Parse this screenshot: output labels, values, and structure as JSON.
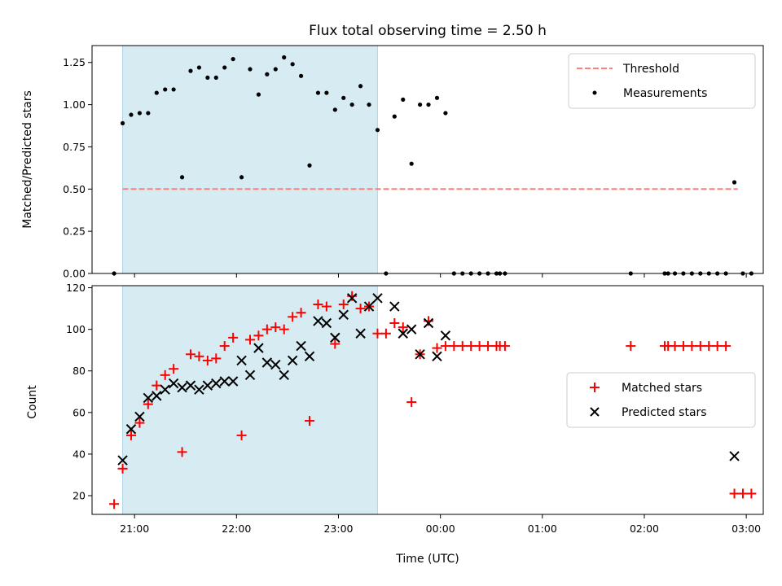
{
  "chart_data": [
    {
      "type": "scatter",
      "title": "Flux total observing time = 2.50 h",
      "xlabel": "",
      "ylabel": "Matched/Predicted stars",
      "x_unit": "time (UTC)",
      "xlim": [
        "20:35",
        "03:10"
      ],
      "ylim": [
        0,
        1.35
      ],
      "x_ticks": [
        "21:00",
        "22:00",
        "23:00",
        "00:00",
        "01:00",
        "02:00",
        "03:00"
      ],
      "x_tick_labels_shown": false,
      "y_ticks": [
        0.0,
        0.25,
        0.5,
        0.75,
        1.0,
        1.25
      ],
      "y_tick_labels": [
        "0.00",
        "0.25",
        "0.50",
        "0.75",
        "1.00",
        "1.25"
      ],
      "shaded_span": {
        "start": "20:53",
        "end": "23:23",
        "color": "#add8e6"
      },
      "legend": {
        "placement": "top-right",
        "entries": [
          "Threshold",
          "Measurements"
        ]
      },
      "threshold": {
        "name": "Threshold",
        "value": 0.5,
        "x_start": "20:53",
        "x_end": "02:55",
        "color": "#ff7f7f",
        "style": "dashed"
      },
      "series": [
        {
          "name": "Measurements",
          "color": "#000000",
          "marker": "dot",
          "points": [
            [
              "20:48",
              0.0
            ],
            [
              "20:53",
              0.89
            ],
            [
              "20:58",
              0.94
            ],
            [
              "21:03",
              0.95
            ],
            [
              "21:08",
              0.95
            ],
            [
              "21:13",
              1.07
            ],
            [
              "21:18",
              1.09
            ],
            [
              "21:23",
              1.09
            ],
            [
              "21:28",
              0.57
            ],
            [
              "21:33",
              1.2
            ],
            [
              "21:38",
              1.22
            ],
            [
              "21:43",
              1.16
            ],
            [
              "21:48",
              1.16
            ],
            [
              "21:53",
              1.22
            ],
            [
              "21:58",
              1.27
            ],
            [
              "22:03",
              0.57
            ],
            [
              "22:08",
              1.21
            ],
            [
              "22:13",
              1.06
            ],
            [
              "22:18",
              1.18
            ],
            [
              "22:23",
              1.21
            ],
            [
              "22:28",
              1.28
            ],
            [
              "22:33",
              1.24
            ],
            [
              "22:38",
              1.17
            ],
            [
              "22:43",
              0.64
            ],
            [
              "22:48",
              1.07
            ],
            [
              "22:53",
              1.07
            ],
            [
              "22:58",
              0.97
            ],
            [
              "23:03",
              1.04
            ],
            [
              "23:08",
              1.0
            ],
            [
              "23:13",
              1.11
            ],
            [
              "23:18",
              1.0
            ],
            [
              "23:23",
              0.85
            ],
            [
              "23:28",
              0.0
            ],
            [
              "23:33",
              0.93
            ],
            [
              "23:38",
              1.03
            ],
            [
              "23:43",
              0.65
            ],
            [
              "23:48",
              1.0
            ],
            [
              "23:53",
              1.0
            ],
            [
              "23:58",
              1.04
            ],
            [
              "00:03",
              0.95
            ],
            [
              "00:08",
              0.0
            ],
            [
              "00:13",
              0.0
            ],
            [
              "00:18",
              0.0
            ],
            [
              "00:23",
              0.0
            ],
            [
              "00:28",
              0.0
            ],
            [
              "00:33",
              0.0
            ],
            [
              "00:35",
              0.0
            ],
            [
              "00:38",
              0.0
            ],
            [
              "01:52",
              0.0
            ],
            [
              "02:12",
              0.0
            ],
            [
              "02:14",
              0.0
            ],
            [
              "02:18",
              0.0
            ],
            [
              "02:23",
              0.0
            ],
            [
              "02:28",
              0.0
            ],
            [
              "02:33",
              0.0
            ],
            [
              "02:38",
              0.0
            ],
            [
              "02:43",
              0.0
            ],
            [
              "02:48",
              0.0
            ],
            [
              "02:53",
              0.54
            ],
            [
              "02:58",
              0.0
            ],
            [
              "03:03",
              0.0
            ]
          ]
        }
      ]
    },
    {
      "type": "scatter",
      "title": "",
      "xlabel": "Time (UTC)",
      "ylabel": "Count",
      "x_unit": "time (UTC)",
      "xlim": [
        "20:35",
        "03:10"
      ],
      "ylim": [
        11,
        121
      ],
      "x_ticks": [
        "21:00",
        "22:00",
        "23:00",
        "00:00",
        "01:00",
        "02:00",
        "03:00"
      ],
      "x_tick_labels": [
        "21:00",
        "22:00",
        "23:00",
        "00:00",
        "01:00",
        "02:00",
        "03:00"
      ],
      "y_ticks": [
        20,
        40,
        60,
        80,
        100,
        120
      ],
      "y_tick_labels": [
        "20",
        "40",
        "60",
        "80",
        "100",
        "120"
      ],
      "shaded_span": {
        "start": "20:53",
        "end": "23:23",
        "color": "#add8e6"
      },
      "legend": {
        "placement": "center-right",
        "entries": [
          "Matched stars",
          "Predicted stars"
        ]
      },
      "series": [
        {
          "name": "Matched stars",
          "color": "#ff0000",
          "marker": "plus",
          "points": [
            [
              "20:48",
              16
            ],
            [
              "20:53",
              33
            ],
            [
              "20:58",
              49
            ],
            [
              "21:03",
              55
            ],
            [
              "21:08",
              64
            ],
            [
              "21:13",
              73
            ],
            [
              "21:18",
              78
            ],
            [
              "21:23",
              81
            ],
            [
              "21:28",
              41
            ],
            [
              "21:33",
              88
            ],
            [
              "21:38",
              87
            ],
            [
              "21:43",
              85
            ],
            [
              "21:48",
              86
            ],
            [
              "21:53",
              92
            ],
            [
              "21:58",
              96
            ],
            [
              "22:03",
              49
            ],
            [
              "22:08",
              95
            ],
            [
              "22:13",
              97
            ],
            [
              "22:18",
              100
            ],
            [
              "22:23",
              101
            ],
            [
              "22:28",
              100
            ],
            [
              "22:33",
              106
            ],
            [
              "22:38",
              108
            ],
            [
              "22:43",
              56
            ],
            [
              "22:48",
              112
            ],
            [
              "22:53",
              111
            ],
            [
              "22:58",
              93
            ],
            [
              "23:03",
              112
            ],
            [
              "23:08",
              116
            ],
            [
              "23:13",
              110
            ],
            [
              "23:18",
              111
            ],
            [
              "23:23",
              98
            ],
            [
              "23:28",
              98
            ],
            [
              "23:33",
              103
            ],
            [
              "23:38",
              101
            ],
            [
              "23:43",
              65
            ],
            [
              "23:48",
              88
            ],
            [
              "23:53",
              104
            ],
            [
              "23:58",
              91
            ],
            [
              "00:03",
              92
            ],
            [
              "00:08",
              92
            ],
            [
              "00:13",
              92
            ],
            [
              "00:18",
              92
            ],
            [
              "00:23",
              92
            ],
            [
              "00:28",
              92
            ],
            [
              "00:33",
              92
            ],
            [
              "00:35",
              92
            ],
            [
              "00:38",
              92
            ],
            [
              "01:52",
              92
            ],
            [
              "02:12",
              92
            ],
            [
              "02:14",
              92
            ],
            [
              "02:18",
              92
            ],
            [
              "02:23",
              92
            ],
            [
              "02:28",
              92
            ],
            [
              "02:33",
              92
            ],
            [
              "02:38",
              92
            ],
            [
              "02:43",
              92
            ],
            [
              "02:48",
              92
            ],
            [
              "02:53",
              21
            ],
            [
              "02:58",
              21
            ],
            [
              "03:03",
              21
            ]
          ]
        },
        {
          "name": "Predicted stars",
          "color": "#000000",
          "marker": "x",
          "points": [
            [
              "20:53",
              37
            ],
            [
              "20:58",
              52
            ],
            [
              "21:03",
              58
            ],
            [
              "21:08",
              67
            ],
            [
              "21:13",
              68
            ],
            [
              "21:18",
              71
            ],
            [
              "21:23",
              74
            ],
            [
              "21:28",
              72
            ],
            [
              "21:33",
              73
            ],
            [
              "21:38",
              71
            ],
            [
              "21:43",
              73
            ],
            [
              "21:48",
              74
            ],
            [
              "21:53",
              75
            ],
            [
              "21:58",
              75
            ],
            [
              "22:03",
              85
            ],
            [
              "22:08",
              78
            ],
            [
              "22:13",
              91
            ],
            [
              "22:18",
              84
            ],
            [
              "22:23",
              83
            ],
            [
              "22:28",
              78
            ],
            [
              "22:33",
              85
            ],
            [
              "22:38",
              92
            ],
            [
              "22:43",
              87
            ],
            [
              "22:48",
              104
            ],
            [
              "22:53",
              103
            ],
            [
              "22:58",
              96
            ],
            [
              "23:03",
              107
            ],
            [
              "23:08",
              115
            ],
            [
              "23:13",
              98
            ],
            [
              "23:18",
              111
            ],
            [
              "23:23",
              115
            ],
            [
              "23:33",
              111
            ],
            [
              "23:38",
              98
            ],
            [
              "23:43",
              100
            ],
            [
              "23:48",
              88
            ],
            [
              "23:53",
              103
            ],
            [
              "23:58",
              87
            ],
            [
              "00:03",
              97
            ],
            [
              "02:53",
              39
            ]
          ]
        }
      ]
    }
  ]
}
